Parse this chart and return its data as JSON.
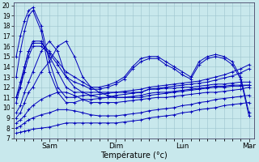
{
  "xlabel": "Température (°c)",
  "bg_color": "#c8e8ec",
  "grid_color": "#9cc4cc",
  "line_color": "#0000bb",
  "yticks": [
    7,
    8,
    9,
    10,
    11,
    12,
    13,
    14,
    15,
    16,
    17,
    18,
    19,
    20
  ],
  "day_positions": [
    24,
    72,
    120,
    168
  ],
  "day_labels": [
    "Sam",
    "Dim",
    "Lun",
    "Mar"
  ],
  "xlim": [
    -2,
    172
  ],
  "ylim": [
    7,
    20.3
  ],
  "lines": [
    {
      "x": [
        0,
        3,
        6,
        9,
        12,
        18,
        24,
        30,
        36,
        42,
        48,
        54,
        60,
        66,
        72,
        78,
        84,
        90,
        96,
        102,
        108,
        114,
        120,
        126,
        132,
        138,
        144,
        150,
        156,
        162,
        168
      ],
      "y": [
        15.0,
        17.0,
        18.5,
        19.5,
        19.8,
        18.0,
        14.5,
        12.0,
        11.0,
        11.0,
        11.2,
        11.2,
        11.3,
        11.4,
        11.5,
        11.6,
        11.7,
        11.8,
        12.0,
        12.1,
        12.2,
        12.3,
        12.4,
        12.5,
        12.6,
        12.8,
        13.0,
        13.2,
        13.5,
        13.8,
        14.2
      ]
    },
    {
      "x": [
        0,
        3,
        6,
        9,
        12,
        18,
        24,
        30,
        36,
        42,
        48,
        54,
        60,
        66,
        72,
        78,
        84,
        90,
        96,
        102,
        108,
        114,
        120,
        126,
        132,
        138,
        144,
        150,
        156,
        162,
        168
      ],
      "y": [
        13.0,
        15.5,
        17.5,
        19.0,
        19.5,
        17.5,
        13.5,
        11.5,
        10.5,
        10.5,
        10.8,
        10.8,
        10.9,
        11.0,
        11.2,
        11.3,
        11.4,
        11.5,
        11.8,
        11.9,
        12.0,
        12.1,
        12.2,
        12.3,
        12.4,
        12.5,
        12.7,
        12.9,
        13.1,
        13.4,
        13.8
      ]
    },
    {
      "x": [
        0,
        3,
        6,
        9,
        12,
        18,
        24,
        30,
        36,
        42,
        48,
        54,
        60,
        66,
        72,
        78,
        84,
        90,
        96,
        102,
        108,
        114,
        120,
        126,
        132,
        138,
        144,
        150,
        156,
        162,
        168
      ],
      "y": [
        11.0,
        12.0,
        14.0,
        15.5,
        16.5,
        16.5,
        15.0,
        13.5,
        12.0,
        11.5,
        11.5,
        11.5,
        11.5,
        11.5,
        11.5,
        11.5,
        11.5,
        11.5,
        11.8,
        11.8,
        11.9,
        11.9,
        12.0,
        12.0,
        12.1,
        12.2,
        12.3,
        12.3,
        12.4,
        12.5,
        12.5
      ]
    },
    {
      "x": [
        0,
        3,
        6,
        9,
        12,
        18,
        24,
        30,
        36,
        42,
        48,
        54,
        60,
        66,
        72,
        78,
        84,
        90,
        96,
        102,
        108,
        114,
        120,
        126,
        132,
        138,
        144,
        150,
        156,
        162,
        168
      ],
      "y": [
        9.5,
        10.2,
        11.5,
        12.5,
        13.5,
        15.5,
        16.5,
        15.5,
        13.0,
        12.0,
        11.5,
        11.2,
        11.0,
        11.0,
        11.0,
        11.0,
        11.1,
        11.2,
        11.4,
        11.5,
        11.5,
        11.6,
        11.7,
        11.8,
        11.9,
        12.0,
        12.1,
        12.1,
        12.2,
        12.2,
        12.2
      ]
    },
    {
      "x": [
        0,
        3,
        6,
        9,
        12,
        18,
        24,
        30,
        36,
        42,
        48,
        54,
        60,
        66,
        72,
        78,
        84,
        90,
        96,
        102,
        108,
        114,
        120,
        126,
        132,
        138,
        144,
        150,
        156,
        162,
        168
      ],
      "y": [
        9.0,
        9.5,
        10.5,
        11.5,
        12.0,
        13.5,
        14.5,
        16.0,
        16.5,
        15.0,
        13.0,
        12.0,
        11.5,
        11.2,
        11.0,
        11.0,
        11.0,
        11.0,
        11.2,
        11.3,
        11.4,
        11.5,
        11.6,
        11.7,
        11.8,
        11.9,
        12.0,
        12.0,
        12.1,
        12.1,
        12.2
      ]
    },
    {
      "x": [
        0,
        3,
        6,
        9,
        12,
        18,
        24,
        30,
        36,
        42,
        48,
        54,
        60,
        66,
        72,
        78,
        84,
        90,
        96,
        102,
        108,
        114,
        120,
        126,
        132,
        138,
        144,
        150,
        156,
        162,
        168
      ],
      "y": [
        8.5,
        8.8,
        9.2,
        9.8,
        10.2,
        10.8,
        11.2,
        11.5,
        11.5,
        11.2,
        10.8,
        10.5,
        10.5,
        10.5,
        10.5,
        10.6,
        10.7,
        10.8,
        10.9,
        11.0,
        11.0,
        11.1,
        11.2,
        11.3,
        11.4,
        11.5,
        11.5,
        11.6,
        11.7,
        11.8,
        12.0
      ]
    },
    {
      "x": [
        0,
        3,
        6,
        9,
        12,
        18,
        24,
        30,
        36,
        42,
        48,
        54,
        60,
        66,
        72,
        78,
        84,
        90,
        96,
        102,
        108,
        114,
        120,
        126,
        132,
        138,
        144,
        150,
        156,
        162,
        168
      ],
      "y": [
        8.0,
        8.2,
        8.5,
        8.8,
        9.0,
        9.3,
        9.5,
        9.8,
        9.8,
        9.7,
        9.5,
        9.3,
        9.2,
        9.2,
        9.2,
        9.3,
        9.4,
        9.5,
        9.7,
        9.8,
        9.9,
        10.0,
        10.2,
        10.3,
        10.5,
        10.6,
        10.8,
        10.9,
        11.0,
        11.1,
        11.2
      ]
    },
    {
      "x": [
        0,
        3,
        6,
        9,
        12,
        18,
        24,
        30,
        36,
        42,
        48,
        54,
        60,
        66,
        72,
        78,
        84,
        90,
        96,
        102,
        108,
        114,
        120,
        126,
        132,
        138,
        144,
        150,
        156,
        162,
        168
      ],
      "y": [
        7.5,
        7.6,
        7.7,
        7.8,
        7.9,
        8.0,
        8.1,
        8.3,
        8.5,
        8.5,
        8.5,
        8.5,
        8.5,
        8.5,
        8.5,
        8.6,
        8.7,
        8.8,
        9.0,
        9.1,
        9.2,
        9.3,
        9.5,
        9.6,
        9.8,
        9.9,
        10.0,
        10.2,
        10.3,
        10.4,
        10.5
      ]
    },
    {
      "x": [
        0,
        3,
        6,
        9,
        12,
        18,
        24,
        30,
        36,
        42,
        48,
        54,
        60,
        66,
        72,
        78,
        84,
        90,
        96,
        102,
        108,
        114,
        120,
        126,
        132,
        138,
        144,
        150,
        156,
        162,
        168
      ],
      "y": [
        11.0,
        12.5,
        14.0,
        15.5,
        16.3,
        16.3,
        15.5,
        14.5,
        13.5,
        13.0,
        12.5,
        12.0,
        12.0,
        12.2,
        12.5,
        13.0,
        14.0,
        14.8,
        15.0,
        15.0,
        14.5,
        14.0,
        13.5,
        13.0,
        14.5,
        15.0,
        15.2,
        15.0,
        14.5,
        13.0,
        9.5
      ]
    },
    {
      "x": [
        0,
        3,
        6,
        9,
        12,
        18,
        24,
        30,
        36,
        42,
        48,
        54,
        60,
        66,
        72,
        78,
        84,
        90,
        96,
        102,
        108,
        114,
        120,
        126,
        132,
        138,
        144,
        150,
        156,
        162,
        168
      ],
      "y": [
        10.5,
        12.0,
        13.5,
        15.0,
        16.0,
        16.0,
        15.3,
        14.2,
        13.0,
        12.5,
        12.2,
        11.8,
        11.8,
        12.0,
        12.3,
        12.8,
        13.8,
        14.5,
        14.8,
        14.8,
        14.2,
        13.8,
        13.2,
        12.8,
        14.2,
        14.8,
        15.0,
        14.8,
        14.2,
        12.8,
        9.2
      ]
    }
  ]
}
